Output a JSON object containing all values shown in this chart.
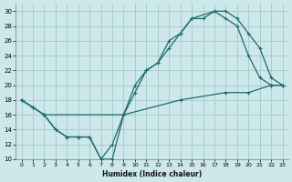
{
  "xlabel": "Humidex (Indice chaleur)",
  "xlim": [
    -0.5,
    23.5
  ],
  "ylim": [
    10,
    31
  ],
  "yticks": [
    10,
    12,
    14,
    16,
    18,
    20,
    22,
    24,
    26,
    28,
    30
  ],
  "xticks": [
    0,
    1,
    2,
    3,
    4,
    5,
    6,
    7,
    8,
    9,
    10,
    11,
    12,
    13,
    14,
    15,
    16,
    17,
    18,
    19,
    20,
    21,
    22,
    23
  ],
  "bg_color": "#cde8eb",
  "grid_color": "#a8cdd0",
  "line_color": "#1e6b6b",
  "line1_x": [
    0,
    1,
    2,
    3,
    4,
    5,
    6,
    7,
    8,
    9,
    10,
    11,
    12,
    13,
    14,
    15,
    17,
    18,
    19,
    20,
    21,
    22,
    23
  ],
  "line1_y": [
    18,
    17,
    16,
    14,
    13,
    13,
    13,
    10,
    12,
    16,
    20,
    22,
    23,
    25,
    27,
    29,
    30,
    30,
    29,
    27,
    25,
    21,
    20
  ],
  "line2_x": [
    0,
    1,
    2,
    3,
    4,
    5,
    6,
    7,
    8,
    9,
    10,
    11,
    12,
    13,
    14,
    15,
    16,
    17,
    18,
    19,
    20,
    21,
    22,
    23
  ],
  "line2_y": [
    18,
    17,
    16,
    14,
    13,
    13,
    13,
    10,
    10,
    16,
    19,
    22,
    23,
    26,
    27,
    29,
    29,
    30,
    29,
    28,
    24,
    21,
    20,
    20
  ],
  "line3_x": [
    0,
    2,
    9,
    14,
    18,
    20,
    22,
    23
  ],
  "line3_y": [
    18,
    16,
    16,
    18,
    19,
    19,
    20,
    20
  ]
}
